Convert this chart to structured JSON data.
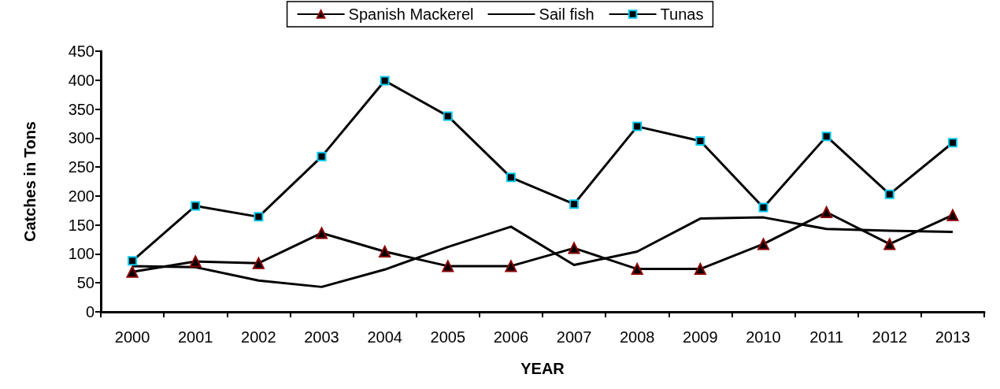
{
  "chart_data": {
    "type": "line",
    "xlabel": "YEAR",
    "ylabel": "Catches in Tons",
    "categories": [
      "2000",
      "2001",
      "2002",
      "2003",
      "2004",
      "2005",
      "2006",
      "2007",
      "2008",
      "2009",
      "2010",
      "2011",
      "2012",
      "2013"
    ],
    "series": [
      {
        "name": "Spanish Mackerel",
        "color": "#000000",
        "marker": "triangle",
        "values": [
          69,
          87,
          84,
          136,
          104,
          79,
          79,
          110,
          74,
          74,
          117,
          172,
          117,
          167
        ]
      },
      {
        "name": "Sail fish",
        "color": "#000000",
        "marker": "none",
        "values": [
          79,
          77,
          54,
          43,
          73,
          112,
          147,
          81,
          104,
          161,
          163,
          143,
          140,
          138
        ]
      },
      {
        "name": "Tunas",
        "color": "#000000",
        "marker": "square",
        "values": [
          88,
          183,
          164,
          268,
          399,
          338,
          232,
          186,
          320,
          295,
          180,
          303,
          203,
          292
        ]
      }
    ],
    "ylim": [
      0,
      450
    ],
    "yticks": [
      0,
      50,
      100,
      150,
      200,
      250,
      300,
      350,
      400,
      450
    ],
    "grid": false,
    "legend": "top",
    "line_style": "solid"
  }
}
